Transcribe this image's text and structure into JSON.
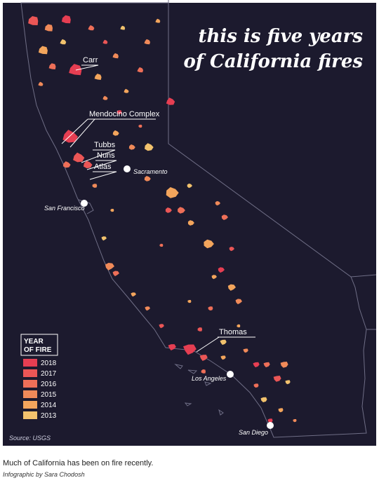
{
  "title_lines": [
    "this is five years",
    "of California fires"
  ],
  "fires": [
    "Carr",
    "Mendocino Complex",
    "Tubbs",
    "Nuns",
    "Atlas",
    "Thomas"
  ],
  "cities": [
    "Sacramento",
    "San Francisco",
    "Los Angeles",
    "San Diego"
  ],
  "legend": {
    "title_lines": [
      "YEAR",
      "OF FIRE"
    ],
    "items": [
      {
        "label": "2018",
        "color": "#e63e52"
      },
      {
        "label": "2017",
        "color": "#eb5656"
      },
      {
        "label": "2016",
        "color": "#ee6f58"
      },
      {
        "label": "2015",
        "color": "#f08a59"
      },
      {
        "label": "2014",
        "color": "#f3a55c"
      },
      {
        "label": "2013",
        "color": "#f2c26d"
      }
    ]
  },
  "source": "Source: USGS",
  "caption": "Much of California has been on fire recently.",
  "credit": "Infographic by Sara Chodosh"
}
